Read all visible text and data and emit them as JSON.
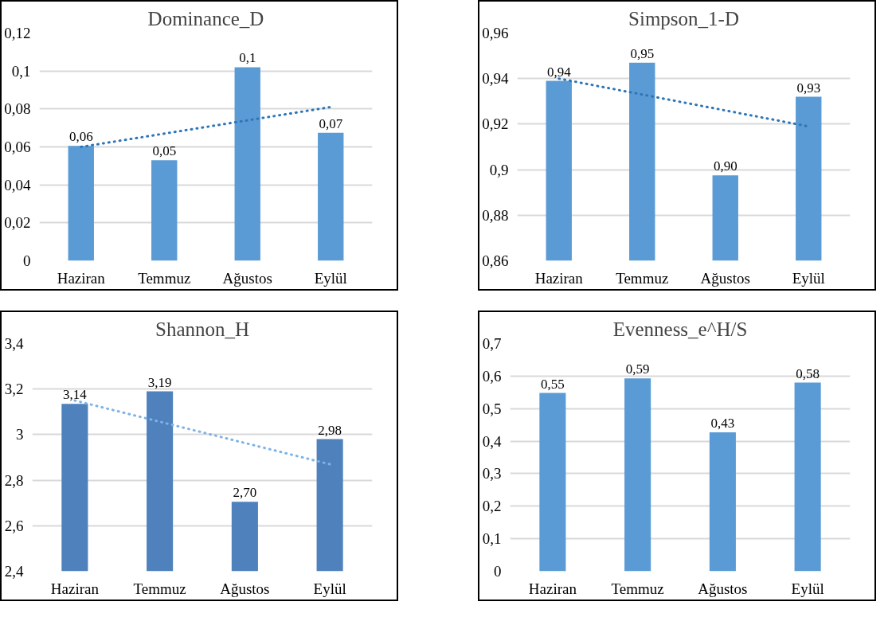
{
  "chart_data": [
    {
      "type": "bar",
      "title": "Dominance_D",
      "categories": [
        "Haziran",
        "Temmuz",
        "Ağustos",
        "Eylül"
      ],
      "ylim": [
        0,
        0.12
      ],
      "yticks": [
        {
          "value": 0,
          "label": "0"
        },
        {
          "value": 0.02,
          "label": "0,02"
        },
        {
          "value": 0.04,
          "label": "0,04"
        },
        {
          "value": 0.06,
          "label": "0,06"
        },
        {
          "value": 0.08,
          "label": "0,08"
        },
        {
          "value": 0.1,
          "label": "0,1"
        },
        {
          "value": 0.12,
          "label": "0,12"
        }
      ],
      "grid": "y",
      "series": [
        {
          "color": "#5b9bd5",
          "values": [
            0.0605,
            0.053,
            0.102,
            0.0675
          ],
          "value_labels": [
            "0,06",
            "0,05",
            "0,1",
            "0,07"
          ]
        },
        {
          "type": "line",
          "color": "#2e75b6",
          "line_style": "dotted",
          "marker": "none",
          "x": [
            "Haziran",
            "Eylül"
          ],
          "values": [
            0.06,
            0.081
          ]
        }
      ]
    },
    {
      "type": "bar",
      "title": "Simpson_1-D",
      "categories": [
        "Haziran",
        "Temmuz",
        "Ağustos",
        "Eylül"
      ],
      "ylim": [
        0.86,
        0.96
      ],
      "yticks": [
        {
          "value": 0.86,
          "label": "0,86"
        },
        {
          "value": 0.88,
          "label": "0,88"
        },
        {
          "value": 0.9,
          "label": "0,9"
        },
        {
          "value": 0.92,
          "label": "0,92"
        },
        {
          "value": 0.94,
          "label": "0,94"
        },
        {
          "value": 0.96,
          "label": "0,96"
        }
      ],
      "grid": "y",
      "series": [
        {
          "color": "#5b9bd5",
          "values": [
            0.939,
            0.947,
            0.8975,
            0.932
          ],
          "value_labels": [
            "0,94",
            "0,95",
            "0,90",
            "0,93"
          ]
        },
        {
          "type": "line",
          "color": "#2e75b6",
          "line_style": "dotted",
          "marker": "none",
          "x": [
            "Haziran",
            "Eylül"
          ],
          "values": [
            0.94,
            0.919
          ]
        }
      ]
    },
    {
      "type": "bar",
      "title": "Shannon_H",
      "categories": [
        "Haziran",
        "Temmuz",
        "Ağustos",
        "Eylül"
      ],
      "ylim": [
        2.4,
        3.4
      ],
      "yticks": [
        {
          "value": 2.4,
          "label": "2,4"
        },
        {
          "value": 2.6,
          "label": "2,6"
        },
        {
          "value": 2.8,
          "label": "2,8"
        },
        {
          "value": 3,
          "label": "3"
        },
        {
          "value": 3.2,
          "label": "3,2"
        },
        {
          "value": 3.4,
          "label": "3,4"
        }
      ],
      "grid": "y",
      "series": [
        {
          "color": "#4f81bd",
          "values": [
            3.135,
            3.19,
            2.705,
            2.98
          ],
          "value_labels": [
            "3,14",
            "3,19",
            "2,70",
            "2,98"
          ]
        },
        {
          "type": "line",
          "color": "#7fb2e5",
          "line_style": "dotted",
          "marker": "none",
          "x": [
            "Haziran",
            "Eylül"
          ],
          "values": [
            3.15,
            2.87
          ]
        }
      ]
    },
    {
      "type": "bar",
      "title": "Evenness_e^H/S",
      "categories": [
        "Haziran",
        "Temmuz",
        "Ağustos",
        "Eylül"
      ],
      "ylim": [
        0,
        0.7
      ],
      "yticks": [
        {
          "value": 0,
          "label": "0"
        },
        {
          "value": 0.1,
          "label": "0,1"
        },
        {
          "value": 0.2,
          "label": "0,2"
        },
        {
          "value": 0.3,
          "label": "0,3"
        },
        {
          "value": 0.4,
          "label": "0,4"
        },
        {
          "value": 0.5,
          "label": "0,5"
        },
        {
          "value": 0.6,
          "label": "0,6"
        },
        {
          "value": 0.7,
          "label": "0,7"
        }
      ],
      "grid": "y",
      "series": [
        {
          "color": "#5b9bd5",
          "values": [
            0.548,
            0.593,
            0.427,
            0.58
          ],
          "value_labels": [
            "0,55",
            "0,59",
            "0,43",
            "0,58"
          ]
        }
      ]
    }
  ]
}
